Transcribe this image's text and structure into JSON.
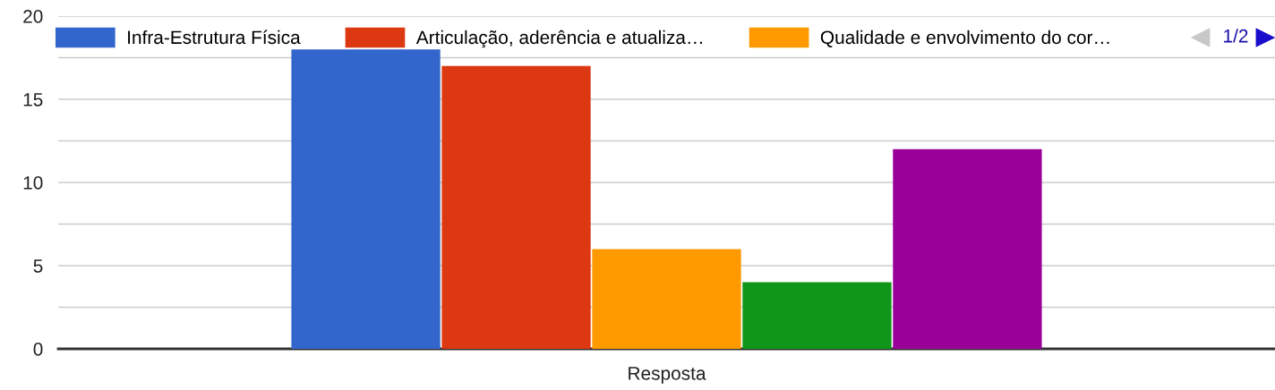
{
  "chart_data": {
    "type": "bar",
    "categories": [
      "Resposta"
    ],
    "series": [
      {
        "name": "Infra-Estrutura Física",
        "color": "#3366cc",
        "values": [
          18
        ]
      },
      {
        "name": "Articulação, aderência e atualiza…",
        "color": "#dc3912",
        "values": [
          17
        ]
      },
      {
        "name": "Qualidade e envolvimento do cor…",
        "color": "#ff9900",
        "values": [
          6
        ]
      },
      {
        "color": "#109618",
        "values": [
          4
        ]
      },
      {
        "color": "#990099",
        "values": [
          12
        ]
      }
    ],
    "ylim": [
      0,
      20
    ],
    "yticks": [
      0,
      {
        "value": 2.5,
        "label": null
      },
      5,
      {
        "value": 7.5,
        "label": null
      },
      10,
      {
        "value": 12.5,
        "label": null
      },
      15,
      {
        "value": 17.5,
        "label": null
      },
      20
    ],
    "grid": "y",
    "legend": "top",
    "annotations": [
      "1/2"
    ]
  }
}
